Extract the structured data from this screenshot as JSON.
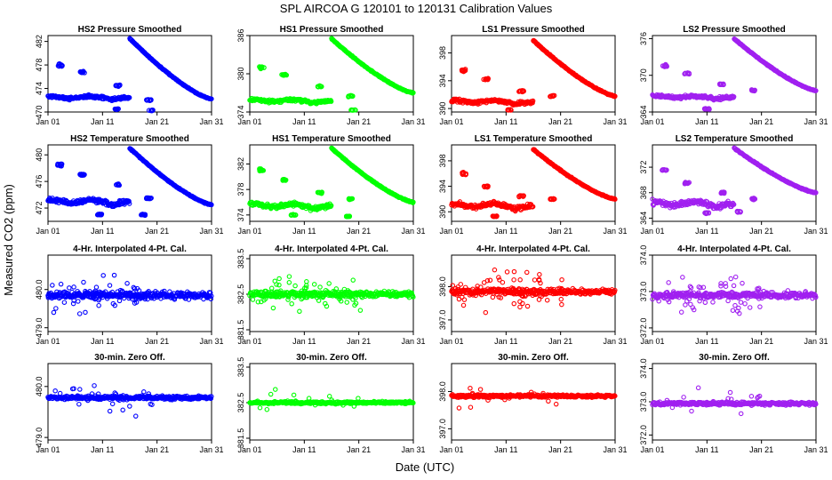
{
  "title": "SPL   AIRCOA G   120101 to 120131   Calibration Values",
  "ylabel": "Measured CO2 (ppm)",
  "xlabel": "Date (UTC)",
  "colors": {
    "HS2": "#0000ff",
    "HS1": "#00ff00",
    "LS1": "#ff0000",
    "LS2": "#a020f0"
  },
  "chart_data": [
    {
      "type": "scatter",
      "title": "HS2 Pressure Smoothed",
      "gas": "HS2",
      "color": "#0000ff",
      "row": 0,
      "col": 0,
      "xlim": [
        1,
        31
      ],
      "ylim": [
        470,
        483
      ],
      "x_ticks": [
        1,
        11,
        21,
        31
      ],
      "x_tick_labels": [
        "Jan 01",
        "Jan 11",
        "Jan 21",
        "Jan 31"
      ],
      "y_ticks": [
        470,
        474,
        478,
        482
      ],
      "y_tick_labels": [
        "470",
        "474",
        "478",
        "482"
      ],
      "base": 472.5,
      "jitter": 0.35,
      "decline": [
        16,
        482.5,
        31,
        472.2
      ],
      "wave": 0.6,
      "excursions": [
        [
          3.2,
          478,
          1.2
        ],
        [
          7.3,
          476.8,
          0.8
        ],
        [
          13.8,
          474.5,
          0.8
        ],
        [
          19.5,
          472,
          0.7
        ],
        [
          13.5,
          470.5,
          0.5
        ],
        [
          19.8,
          470.3,
          0.4
        ]
      ]
    },
    {
      "type": "scatter",
      "title": "HS1 Pressure Smoothed",
      "gas": "HS1",
      "color": "#00ff00",
      "row": 0,
      "col": 1,
      "xlim": [
        1,
        31
      ],
      "ylim": [
        374,
        386
      ],
      "x_ticks": [
        1,
        11,
        21,
        31
      ],
      "x_tick_labels": [
        "Jan 01",
        "Jan 11",
        "Jan 21",
        "Jan 31"
      ],
      "y_ticks": [
        374,
        380,
        386
      ],
      "y_tick_labels": [
        "374",
        "380",
        "386"
      ],
      "base": 375.8,
      "jitter": 0.35,
      "decline": [
        16,
        385.5,
        31,
        377
      ],
      "wave": 0.6,
      "excursions": [
        [
          3.2,
          381,
          1.2
        ],
        [
          7.3,
          379.8,
          0.8
        ],
        [
          13.8,
          378,
          0.8
        ],
        [
          19.5,
          376.5,
          0.7
        ],
        [
          20,
          374.3,
          0.4
        ]
      ]
    },
    {
      "type": "scatter",
      "title": "LS1 Pressure Smoothed",
      "gas": "LS1",
      "color": "#ff0000",
      "row": 0,
      "col": 2,
      "xlim": [
        1,
        31
      ],
      "ylim": [
        389.5,
        400.5
      ],
      "x_ticks": [
        1,
        11,
        21,
        31
      ],
      "x_tick_labels": [
        "Jan 01",
        "Jan 11",
        "Jan 21",
        "Jan 31"
      ],
      "y_ticks": [
        390,
        394,
        398
      ],
      "y_tick_labels": [
        "390",
        "394",
        "398"
      ],
      "base": 391,
      "jitter": 0.35,
      "decline": [
        16,
        399.8,
        31,
        391.8
      ],
      "wave": 0.6,
      "excursions": [
        [
          3.2,
          395.5,
          1.2
        ],
        [
          7.3,
          394.2,
          0.8
        ],
        [
          11.5,
          389.8,
          0.5
        ],
        [
          13.8,
          392.5,
          0.8
        ],
        [
          19.5,
          391.8,
          0.7
        ]
      ]
    },
    {
      "type": "scatter",
      "title": "LS2 Pressure Smoothed",
      "gas": "LS2",
      "color": "#a020f0",
      "row": 0,
      "col": 3,
      "xlim": [
        1,
        31
      ],
      "ylim": [
        364,
        376.5
      ],
      "x_ticks": [
        1,
        11,
        21,
        31
      ],
      "x_tick_labels": [
        "Jan 01",
        "Jan 11",
        "Jan 21",
        "Jan 31"
      ],
      "y_ticks": [
        364,
        370,
        376
      ],
      "y_tick_labels": [
        "364",
        "370",
        "376"
      ],
      "base": 366.5,
      "jitter": 0.35,
      "decline": [
        16,
        376,
        31,
        367.5
      ],
      "wave": 0.6,
      "excursions": [
        [
          3.2,
          371.5,
          1.2
        ],
        [
          7.3,
          370.3,
          0.8
        ],
        [
          13.8,
          368.5,
          0.8
        ],
        [
          19.5,
          367.5,
          0.7
        ],
        [
          11,
          364.5,
          0.5
        ]
      ]
    },
    {
      "type": "scatter",
      "title": "HS2 Temperature Smoothed",
      "gas": "HS2",
      "color": "#0000ff",
      "row": 1,
      "col": 0,
      "xlim": [
        1,
        31
      ],
      "ylim": [
        470,
        481.5
      ],
      "x_ticks": [
        1,
        11,
        21,
        31
      ],
      "x_tick_labels": [
        "Jan 01",
        "Jan 11",
        "Jan 21",
        "Jan 31"
      ],
      "y_ticks": [
        472,
        476,
        480
      ],
      "y_tick_labels": [
        "472",
        "476",
        "480"
      ],
      "base": 473,
      "jitter": 0.5,
      "decline": [
        16,
        481,
        31,
        472.5
      ],
      "wave": 0.9,
      "excursions": [
        [
          3.2,
          478.5,
          1.2
        ],
        [
          7.3,
          477,
          0.8
        ],
        [
          13.8,
          475.5,
          0.8
        ],
        [
          10.5,
          471,
          0.5
        ],
        [
          19.5,
          473.5,
          0.7
        ],
        [
          18.5,
          471,
          0.5
        ]
      ]
    },
    {
      "type": "scatter",
      "title": "HS1 Temperature Smoothed",
      "gas": "HS1",
      "color": "#00ff00",
      "row": 1,
      "col": 1,
      "xlim": [
        1,
        31
      ],
      "ylim": [
        373,
        385
      ],
      "x_ticks": [
        1,
        11,
        21,
        31
      ],
      "x_tick_labels": [
        "Jan 01",
        "Jan 11",
        "Jan 21",
        "Jan 31"
      ],
      "y_ticks": [
        374,
        378,
        382
      ],
      "y_tick_labels": [
        "374",
        "378",
        "382"
      ],
      "base": 375.5,
      "jitter": 0.5,
      "decline": [
        16,
        384.5,
        31,
        376
      ],
      "wave": 0.9,
      "excursions": [
        [
          3.2,
          381,
          1.2
        ],
        [
          7.3,
          379.5,
          0.8
        ],
        [
          13.8,
          377.5,
          0.8
        ],
        [
          9,
          374,
          0.5
        ],
        [
          19.5,
          376.5,
          0.7
        ],
        [
          19,
          373.8,
          0.4
        ]
      ]
    },
    {
      "type": "scatter",
      "title": "LS1 Temperature Smoothed",
      "gas": "LS1",
      "color": "#ff0000",
      "row": 1,
      "col": 2,
      "xlim": [
        1,
        31
      ],
      "ylim": [
        388.5,
        400.5
      ],
      "x_ticks": [
        1,
        11,
        21,
        31
      ],
      "x_tick_labels": [
        "Jan 01",
        "Jan 11",
        "Jan 21",
        "Jan 31"
      ],
      "y_ticks": [
        390,
        394,
        398
      ],
      "y_tick_labels": [
        "390",
        "394",
        "398"
      ],
      "base": 391,
      "jitter": 0.5,
      "decline": [
        16,
        399.8,
        31,
        392
      ],
      "wave": 0.9,
      "excursions": [
        [
          3.2,
          396,
          1.2
        ],
        [
          7.3,
          394,
          0.8
        ],
        [
          13.8,
          392.5,
          0.8
        ],
        [
          9,
          389.3,
          0.6
        ],
        [
          19.5,
          392,
          0.7
        ]
      ]
    },
    {
      "type": "scatter",
      "title": "LS2 Temperature Smoothed",
      "gas": "LS2",
      "color": "#a020f0",
      "row": 1,
      "col": 3,
      "xlim": [
        1,
        31
      ],
      "ylim": [
        363.5,
        375.5
      ],
      "x_ticks": [
        1,
        11,
        21,
        31
      ],
      "x_tick_labels": [
        "Jan 01",
        "Jan 11",
        "Jan 21",
        "Jan 31"
      ],
      "y_ticks": [
        364,
        368,
        372
      ],
      "y_tick_labels": [
        "364",
        "368",
        "372"
      ],
      "base": 366.3,
      "jitter": 0.6,
      "decline": [
        16,
        375,
        31,
        368
      ],
      "wave": 0.9,
      "excursions": [
        [
          3.2,
          371.5,
          1.2
        ],
        [
          7.3,
          369.5,
          0.8
        ],
        [
          13.8,
          368,
          0.8
        ],
        [
          11,
          364.8,
          0.6
        ],
        [
          17,
          365,
          0.6
        ],
        [
          19.5,
          367,
          0.7
        ]
      ]
    },
    {
      "type": "scatter",
      "title": "4-Hr. Interpolated 4-Pt. Cal.",
      "gas": "HS2",
      "color": "#0000ff",
      "row": 2,
      "col": 0,
      "xlim": [
        1,
        31
      ],
      "ylim": [
        478.9,
        480.9
      ],
      "x_ticks": [
        1,
        11,
        21,
        31
      ],
      "x_tick_labels": [
        "Jan 01",
        "Jan 11",
        "Jan 21",
        "Jan 31"
      ],
      "y_ticks": [
        479,
        480
      ],
      "y_tick_labels": [
        "479.0",
        "480.0"
      ],
      "base": 479.85,
      "jitter": 0.12,
      "scatter_spread": 0.45,
      "scatter_n": 70,
      "scatter_range": [
        1,
        20
      ]
    },
    {
      "type": "scatter",
      "title": "4-Hr. Interpolated 4-Pt. Cal.",
      "gas": "HS1",
      "color": "#00ff00",
      "row": 2,
      "col": 1,
      "xlim": [
        1,
        31
      ],
      "ylim": [
        381.45,
        383.6
      ],
      "x_ticks": [
        1,
        11,
        21,
        31
      ],
      "x_tick_labels": [
        "Jan 01",
        "Jan 11",
        "Jan 21",
        "Jan 31"
      ],
      "y_ticks": [
        381.5,
        382.5,
        383.5
      ],
      "y_tick_labels": [
        "381.5",
        "382.5",
        "383.5"
      ],
      "base": 382.5,
      "jitter": 0.12,
      "scatter_spread": 0.45,
      "scatter_n": 60,
      "scatter_range": [
        1,
        22
      ]
    },
    {
      "type": "scatter",
      "title": "4-Hr. Interpolated 4-Pt. Cal.",
      "gas": "LS1",
      "color": "#ff0000",
      "row": 2,
      "col": 2,
      "xlim": [
        1,
        31
      ],
      "ylim": [
        396.65,
        398.95
      ],
      "x_ticks": [
        1,
        11,
        21,
        31
      ],
      "x_tick_labels": [
        "Jan 01",
        "Jan 11",
        "Jan 21",
        "Jan 31"
      ],
      "y_ticks": [
        397,
        398
      ],
      "y_tick_labels": [
        "397.0",
        "398.0"
      ],
      "base": 397.85,
      "jitter": 0.12,
      "scatter_spread": 0.6,
      "scatter_n": 70,
      "scatter_range": [
        1,
        22
      ]
    },
    {
      "type": "scatter",
      "title": "4-Hr. Interpolated 4-Pt. Cal.",
      "gas": "LS2",
      "color": "#a020f0",
      "row": 2,
      "col": 3,
      "xlim": [
        1,
        31
      ],
      "ylim": [
        371.9,
        374
      ],
      "x_ticks": [
        1,
        11,
        21,
        31
      ],
      "x_tick_labels": [
        "Jan 01",
        "Jan 11",
        "Jan 21",
        "Jan 31"
      ],
      "y_ticks": [
        372,
        373,
        374
      ],
      "y_tick_labels": [
        "372.0",
        "373.0",
        "374.0"
      ],
      "base": 372.9,
      "jitter": 0.13,
      "scatter_spread": 0.55,
      "scatter_n": 50,
      "scatter_range": [
        1,
        22
      ]
    },
    {
      "type": "scatter",
      "title": "30-min. Zero Off.",
      "gas": "HS2",
      "color": "#0000ff",
      "row": 3,
      "col": 0,
      "xlim": [
        1,
        31
      ],
      "ylim": [
        478.95,
        480.45
      ],
      "x_ticks": [
        1,
        11,
        21,
        31
      ],
      "x_tick_labels": [
        "Jan 01",
        "Jan 11",
        "Jan 21",
        "Jan 31"
      ],
      "y_ticks": [
        479,
        480
      ],
      "y_tick_labels": [
        "479.0",
        "480.0"
      ],
      "base": 479.78,
      "jitter": 0.05,
      "scatter_spread": 0.3,
      "scatter_n": 25,
      "scatter_range": [
        2,
        21
      ]
    },
    {
      "type": "scatter",
      "title": "30-min. Zero Off.",
      "gas": "HS1",
      "color": "#00ff00",
      "row": 3,
      "col": 1,
      "xlim": [
        1,
        31
      ],
      "ylim": [
        381.45,
        383.6
      ],
      "x_ticks": [
        1,
        11,
        21,
        31
      ],
      "x_tick_labels": [
        "Jan 01",
        "Jan 11",
        "Jan 21",
        "Jan 31"
      ],
      "y_ticks": [
        381.5,
        382.5,
        383.5
      ],
      "y_tick_labels": [
        "381.5",
        "382.5",
        "383.5"
      ],
      "base": 382.5,
      "jitter": 0.05,
      "scatter_spread": 0.35,
      "scatter_n": 15,
      "scatter_range": [
        2,
        21
      ]
    },
    {
      "type": "scatter",
      "title": "30-min. Zero Off.",
      "gas": "LS1",
      "color": "#ff0000",
      "row": 3,
      "col": 2,
      "xlim": [
        1,
        31
      ],
      "ylim": [
        396.7,
        398.75
      ],
      "x_ticks": [
        1,
        11,
        21,
        31
      ],
      "x_tick_labels": [
        "Jan 01",
        "Jan 11",
        "Jan 21",
        "Jan 31"
      ],
      "y_ticks": [
        397,
        398
      ],
      "y_tick_labels": [
        "397.0",
        "398.0"
      ],
      "base": 397.88,
      "jitter": 0.05,
      "scatter_spread": 0.35,
      "scatter_n": 18,
      "scatter_range": [
        2,
        21
      ]
    },
    {
      "type": "scatter",
      "title": "30-min. Zero Off.",
      "gas": "LS2",
      "color": "#a020f0",
      "row": 3,
      "col": 3,
      "xlim": [
        1,
        31
      ],
      "ylim": [
        371.85,
        374.15
      ],
      "x_ticks": [
        1,
        11,
        21,
        31
      ],
      "x_tick_labels": [
        "Jan 01",
        "Jan 11",
        "Jan 21",
        "Jan 31"
      ],
      "y_ticks": [
        372,
        373,
        374
      ],
      "y_tick_labels": [
        "372.0",
        "373.0",
        "374.0"
      ],
      "base": 372.95,
      "jitter": 0.07,
      "scatter_spread": 0.4,
      "scatter_n": 22,
      "scatter_range": [
        2,
        21
      ]
    }
  ]
}
